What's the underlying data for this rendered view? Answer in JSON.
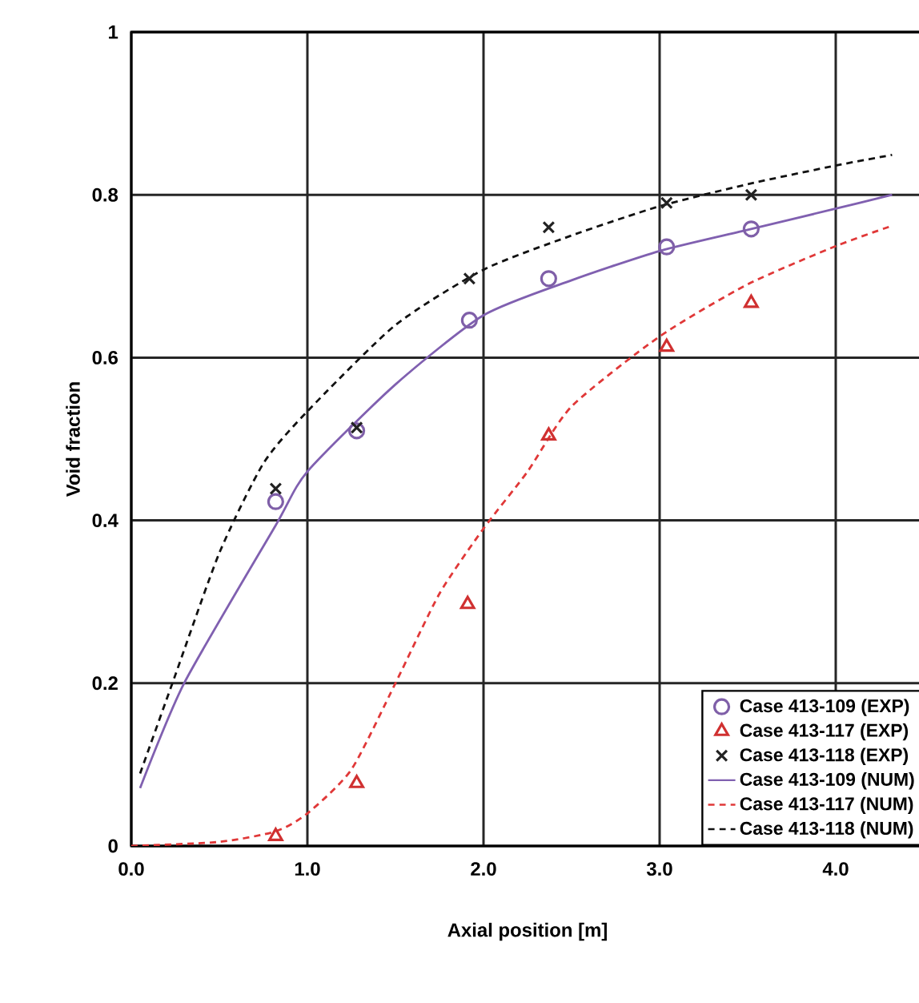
{
  "chart_data": {
    "type": "line",
    "xlabel": "Axial position [m]",
    "ylabel": "Void fraction",
    "xlim": [
      0,
      4.5
    ],
    "ylim": [
      0,
      1
    ],
    "xticks": [
      {
        "value": 0,
        "label": "0.0"
      },
      {
        "value": 1,
        "label": "1.0"
      },
      {
        "value": 2,
        "label": "2.0"
      },
      {
        "value": 3,
        "label": "3.0"
      },
      {
        "value": 4,
        "label": "4.0"
      }
    ],
    "yticks": [
      0,
      0.2,
      0.4,
      0.6,
      0.8,
      1
    ],
    "grid": true,
    "legend": "bottom right",
    "series": [
      {
        "name": "Case 413-109 (EXP)",
        "type": "scatter",
        "marker": "circle",
        "color": "#7f5fa8",
        "x": [
          0.82,
          1.28,
          1.92,
          2.37,
          3.04,
          3.52
        ],
        "values": [
          0.423,
          0.51,
          0.646,
          0.697,
          0.736,
          0.758
        ]
      },
      {
        "name": "Case 413-117 (EXP)",
        "type": "scatter",
        "marker": "triangle",
        "color": "#d03030",
        "x": [
          0.82,
          1.28,
          1.91,
          2.37,
          3.04,
          3.52
        ],
        "values": [
          0.012,
          0.077,
          0.297,
          0.504,
          0.613,
          0.667
        ]
      },
      {
        "name": "Case 413-118 (EXP)",
        "type": "scatter",
        "marker": "cross",
        "color": "#222222",
        "x": [
          0.82,
          1.28,
          1.92,
          2.37,
          3.04,
          3.52
        ],
        "values": [
          0.439,
          0.514,
          0.697,
          0.76,
          0.79,
          0.8
        ]
      },
      {
        "name": "Case 413-109 (NUM)",
        "line_style": "solid",
        "color": "#8060b0",
        "x": [
          0.05,
          0.3,
          0.82,
          1.0,
          1.5,
          2.0,
          2.5,
          3.0,
          3.5,
          4.0,
          4.32
        ],
        "values": [
          0.071,
          0.2,
          0.394,
          0.46,
          0.567,
          0.652,
          0.695,
          0.731,
          0.757,
          0.783,
          0.8
        ]
      },
      {
        "name": "Case 413-117 (NUM)",
        "line_style": "dashed",
        "color": "#e03838",
        "x": [
          0.0,
          0.5,
          0.82,
          1.0,
          1.25,
          1.5,
          1.75,
          2.0,
          2.25,
          2.5,
          3.0,
          3.5,
          4.0,
          4.32
        ],
        "values": [
          0.0,
          0.005,
          0.018,
          0.04,
          0.094,
          0.2,
          0.31,
          0.39,
          0.46,
          0.54,
          0.626,
          0.69,
          0.737,
          0.762
        ]
      },
      {
        "name": "Case 413-118 (NUM)",
        "line_style": "dashed",
        "color": "#111111",
        "x": [
          0.05,
          0.25,
          0.5,
          0.75,
          1.0,
          1.5,
          2.0,
          2.5,
          3.0,
          3.5,
          4.0,
          4.32
        ],
        "values": [
          0.089,
          0.21,
          0.36,
          0.47,
          0.534,
          0.64,
          0.708,
          0.75,
          0.786,
          0.813,
          0.836,
          0.849
        ]
      }
    ]
  }
}
